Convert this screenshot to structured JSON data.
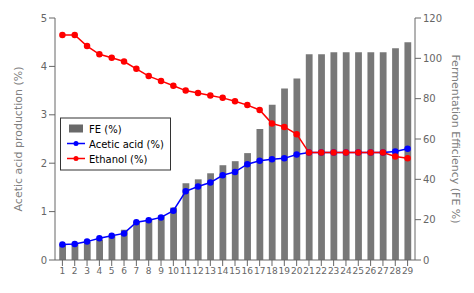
{
  "chart_data": {
    "type": "bar",
    "ylabel": "Acetic acid production (%)",
    "y2label": "Fermentation Efficiency (FE %)",
    "x": [
      1,
      2,
      3,
      4,
      5,
      6,
      7,
      8,
      9,
      10,
      11,
      12,
      13,
      14,
      15,
      16,
      17,
      18,
      19,
      20,
      21,
      22,
      23,
      24,
      25,
      26,
      27,
      28,
      29
    ],
    "xlim": [
      0.4,
      29.6
    ],
    "xticks": [
      1,
      2,
      3,
      4,
      5,
      6,
      7,
      8,
      9,
      10,
      11,
      12,
      13,
      14,
      15,
      16,
      17,
      18,
      19,
      20,
      21,
      22,
      23,
      24,
      25,
      26,
      27,
      28,
      29
    ],
    "ylim": [
      0,
      5
    ],
    "yticks": [
      0,
      1,
      2,
      3,
      4,
      5
    ],
    "y2lim": [
      0,
      120
    ],
    "y2ticks": [
      0,
      20,
      40,
      60,
      80,
      100,
      120
    ],
    "grid": false,
    "legend": "left",
    "series": [
      {
        "name": "FE (%)",
        "type": "bar",
        "axis": "y2",
        "color": "#696969",
        "values": [
          8,
          8,
          9,
          10,
          12,
          15,
          19,
          20,
          22,
          26,
          38,
          40,
          43,
          47,
          49,
          53,
          65,
          77,
          85,
          90,
          102,
          102,
          103,
          103,
          103,
          103,
          103,
          105,
          108
        ]
      },
      {
        "name": "Acetic acid (%)",
        "type": "line",
        "color": "blue",
        "marker": "circle",
        "values": [
          0.32,
          0.33,
          0.38,
          0.45,
          0.5,
          0.55,
          0.78,
          0.82,
          0.88,
          1.02,
          1.42,
          1.52,
          1.6,
          1.75,
          1.82,
          1.98,
          2.05,
          2.08,
          2.1,
          2.18,
          2.22,
          2.22,
          2.22,
          2.22,
          2.22,
          2.22,
          2.22,
          2.24,
          2.3
        ]
      },
      {
        "name": "Ethanol (%)",
        "type": "line",
        "color": "red",
        "marker": "circle",
        "values": [
          4.65,
          4.65,
          4.42,
          4.25,
          4.18,
          4.1,
          3.95,
          3.8,
          3.7,
          3.6,
          3.5,
          3.45,
          3.4,
          3.35,
          3.28,
          3.2,
          3.1,
          2.82,
          2.75,
          2.6,
          2.22,
          2.22,
          2.22,
          2.22,
          2.22,
          2.22,
          2.22,
          2.14,
          2.1
        ]
      }
    ]
  }
}
